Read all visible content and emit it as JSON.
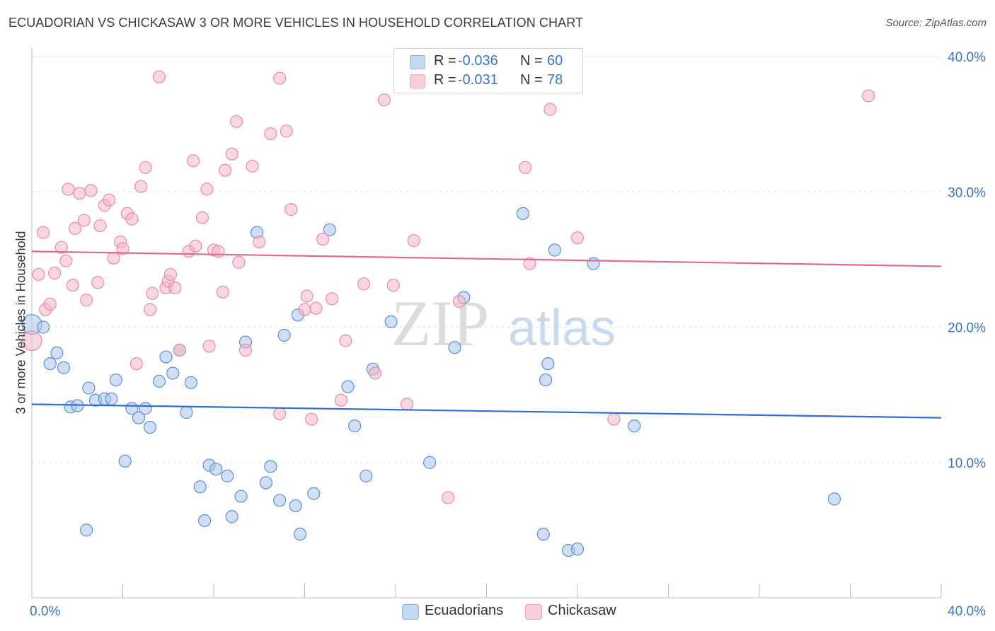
{
  "header": {
    "title": "ECUADORIAN VS CHICKASAW 3 OR MORE VEHICLES IN HOUSEHOLD CORRELATION CHART",
    "source": "Source: ZipAtlas.com"
  },
  "watermark": {
    "zip": "ZIP",
    "atlas": "atlas"
  },
  "legend": {
    "rows": [
      {
        "r_label": "R =",
        "r_value": "-0.036",
        "n_label": "N =",
        "n_value": "60",
        "color": "#a9c4ea"
      },
      {
        "r_label": "R =",
        "r_value": "-0.031",
        "n_label": "N =",
        "n_value": "78",
        "color": "#f4b6c8"
      }
    ]
  },
  "bottom_legend": [
    {
      "label": "Ecuadorians",
      "color": "#a9c4ea"
    },
    {
      "label": "Chickasaw",
      "color": "#f4b6c8"
    }
  ],
  "chart_data": {
    "type": "scatter",
    "title": "ECUADORIAN VS CHICKASAW 3 OR MORE VEHICLES IN HOUSEHOLD CORRELATION CHART",
    "xlabel": "",
    "ylabel": "3 or more Vehicles in Household",
    "xlim": [
      0,
      40
    ],
    "ylim": [
      0,
      40
    ],
    "x_tick_labels": [
      "0.0%",
      "40.0%"
    ],
    "y_ticks": [
      10,
      20,
      30,
      40
    ],
    "y_tick_labels": [
      "10.0%",
      "20.0%",
      "30.0%",
      "40.0%"
    ],
    "grid": true,
    "legend_position": "top-center",
    "series": [
      {
        "name": "Ecuadorians",
        "color": "#a9c4ea",
        "stroke": "#5b8fd6",
        "trend_color": "#2f6fcf",
        "trend": [
          [
            0,
            14.3
          ],
          [
            40,
            13.3
          ]
        ],
        "points": [
          [
            0.0,
            20.2
          ],
          [
            0.5,
            20.0
          ],
          [
            0.8,
            17.3
          ],
          [
            1.1,
            18.1
          ],
          [
            1.4,
            17.0
          ],
          [
            1.7,
            14.1
          ],
          [
            2.0,
            14.2
          ],
          [
            2.5,
            15.5
          ],
          [
            2.8,
            14.6
          ],
          [
            3.2,
            14.7
          ],
          [
            3.5,
            14.7
          ],
          [
            3.7,
            16.1
          ],
          [
            4.4,
            14.0
          ],
          [
            4.7,
            13.3
          ],
          [
            5.0,
            14.0
          ],
          [
            5.2,
            12.6
          ],
          [
            5.6,
            16.0
          ],
          [
            5.9,
            17.8
          ],
          [
            6.2,
            16.6
          ],
          [
            6.5,
            18.3
          ],
          [
            6.8,
            13.7
          ],
          [
            7.0,
            15.9
          ],
          [
            7.4,
            8.2
          ],
          [
            7.6,
            5.7
          ],
          [
            7.8,
            9.8
          ],
          [
            8.1,
            9.5
          ],
          [
            8.6,
            9.0
          ],
          [
            8.8,
            6.0
          ],
          [
            9.2,
            7.5
          ],
          [
            9.4,
            18.9
          ],
          [
            9.9,
            27.0
          ],
          [
            10.3,
            8.5
          ],
          [
            10.5,
            9.7
          ],
          [
            10.9,
            7.2
          ],
          [
            11.1,
            19.4
          ],
          [
            11.6,
            6.8
          ],
          [
            11.7,
            20.9
          ],
          [
            11.8,
            4.7
          ],
          [
            12.4,
            7.7
          ],
          [
            13.1,
            27.2
          ],
          [
            13.9,
            15.6
          ],
          [
            14.2,
            12.7
          ],
          [
            14.7,
            9.0
          ],
          [
            15.0,
            16.9
          ],
          [
            15.8,
            20.4
          ],
          [
            17.5,
            10.0
          ],
          [
            18.6,
            18.5
          ],
          [
            19.0,
            22.2
          ],
          [
            21.6,
            28.4
          ],
          [
            22.5,
            4.7
          ],
          [
            22.6,
            16.1
          ],
          [
            22.7,
            17.3
          ],
          [
            23.0,
            25.7
          ],
          [
            23.6,
            3.5
          ],
          [
            24.0,
            3.6
          ],
          [
            24.7,
            24.7
          ],
          [
            26.5,
            12.7
          ],
          [
            35.3,
            7.3
          ],
          [
            2.4,
            5.0
          ],
          [
            4.1,
            10.1
          ]
        ]
      },
      {
        "name": "Chickasaw",
        "color": "#f4b6c8",
        "stroke": "#e98aa6",
        "trend_color": "#e06a91",
        "trend": [
          [
            0,
            25.6
          ],
          [
            40,
            24.5
          ]
        ],
        "points": [
          [
            0.0,
            19.0
          ],
          [
            0.3,
            23.9
          ],
          [
            0.5,
            27.0
          ],
          [
            0.6,
            21.3
          ],
          [
            0.8,
            21.7
          ],
          [
            1.0,
            24.0
          ],
          [
            1.3,
            25.9
          ],
          [
            1.5,
            24.9
          ],
          [
            1.6,
            30.2
          ],
          [
            1.8,
            23.1
          ],
          [
            1.9,
            27.3
          ],
          [
            2.1,
            29.9
          ],
          [
            2.3,
            27.9
          ],
          [
            2.4,
            22.0
          ],
          [
            2.6,
            30.1
          ],
          [
            2.9,
            23.3
          ],
          [
            3.0,
            27.5
          ],
          [
            3.2,
            29.0
          ],
          [
            3.4,
            29.4
          ],
          [
            3.6,
            25.1
          ],
          [
            3.9,
            26.3
          ],
          [
            4.0,
            25.8
          ],
          [
            4.2,
            28.4
          ],
          [
            4.4,
            28.0
          ],
          [
            4.6,
            17.3
          ],
          [
            4.8,
            30.4
          ],
          [
            5.0,
            31.8
          ],
          [
            5.2,
            21.3
          ],
          [
            5.3,
            22.5
          ],
          [
            5.6,
            38.5
          ],
          [
            5.9,
            22.9
          ],
          [
            6.0,
            23.4
          ],
          [
            6.1,
            23.9
          ],
          [
            6.3,
            22.9
          ],
          [
            6.5,
            18.3
          ],
          [
            6.9,
            25.6
          ],
          [
            7.1,
            32.3
          ],
          [
            7.2,
            26.0
          ],
          [
            7.5,
            28.1
          ],
          [
            7.7,
            30.2
          ],
          [
            7.8,
            18.6
          ],
          [
            8.0,
            25.7
          ],
          [
            8.2,
            25.6
          ],
          [
            8.4,
            22.6
          ],
          [
            8.5,
            31.6
          ],
          [
            8.8,
            32.8
          ],
          [
            9.0,
            35.2
          ],
          [
            9.1,
            24.8
          ],
          [
            9.4,
            18.3
          ],
          [
            9.7,
            31.9
          ],
          [
            10.0,
            26.3
          ],
          [
            10.5,
            34.3
          ],
          [
            10.9,
            38.4
          ],
          [
            10.9,
            13.6
          ],
          [
            11.2,
            34.5
          ],
          [
            11.4,
            28.7
          ],
          [
            12.0,
            21.3
          ],
          [
            12.1,
            22.3
          ],
          [
            12.3,
            13.2
          ],
          [
            12.5,
            21.4
          ],
          [
            12.8,
            26.5
          ],
          [
            13.2,
            22.1
          ],
          [
            13.6,
            14.6
          ],
          [
            13.8,
            19.0
          ],
          [
            14.6,
            23.2
          ],
          [
            15.1,
            16.6
          ],
          [
            15.5,
            36.8
          ],
          [
            15.9,
            23.1
          ],
          [
            16.5,
            14.3
          ],
          [
            16.8,
            26.4
          ],
          [
            18.3,
            7.4
          ],
          [
            18.8,
            21.9
          ],
          [
            21.7,
            31.8
          ],
          [
            21.9,
            24.7
          ],
          [
            22.8,
            36.1
          ],
          [
            24.0,
            26.6
          ],
          [
            25.6,
            13.2
          ],
          [
            36.8,
            37.1
          ]
        ]
      }
    ]
  }
}
